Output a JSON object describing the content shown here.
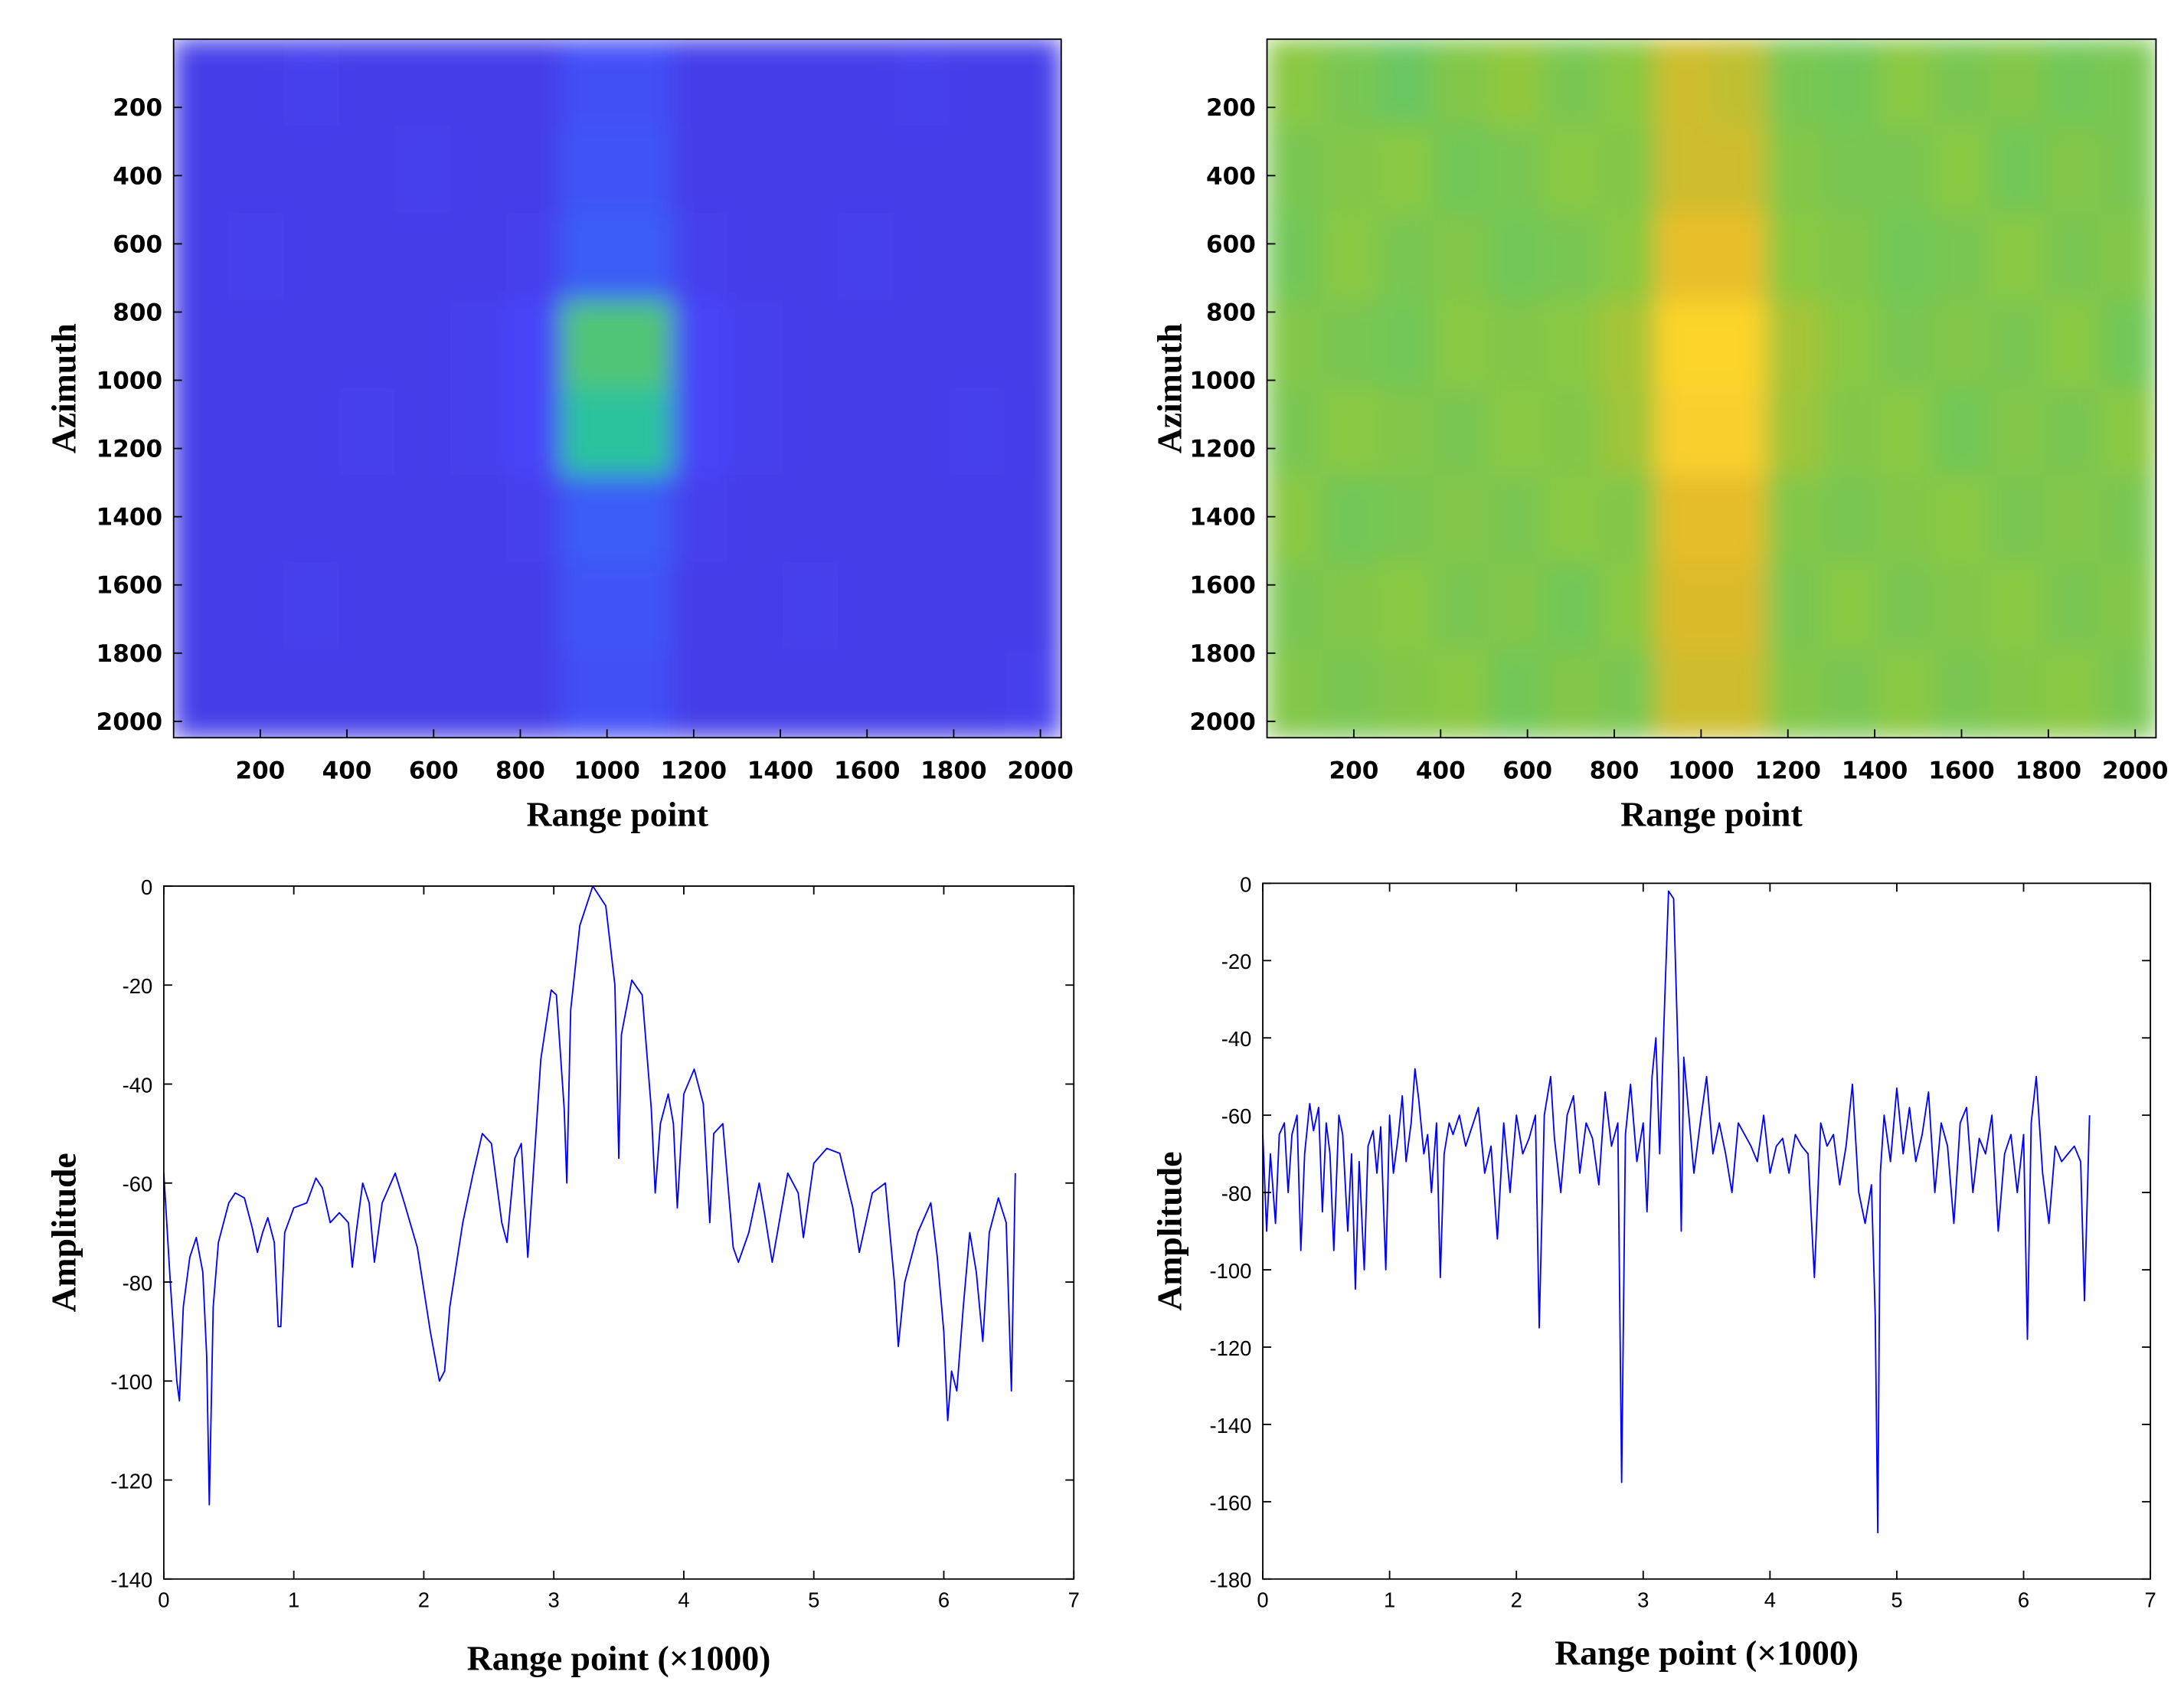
{
  "chart_data": [
    {
      "type": "heatmap",
      "xlabel": "Range point",
      "ylabel": "Azimuth",
      "xlim": [
        0,
        2048
      ],
      "ylim": [
        2048,
        0
      ],
      "xticks": [
        200,
        400,
        600,
        800,
        1000,
        1200,
        1400,
        1600,
        1800,
        2000
      ],
      "yticks": [
        200,
        400,
        600,
        800,
        1000,
        1200,
        1400,
        1600,
        1800,
        2000
      ],
      "clim": [
        0,
        1
      ],
      "colormap": [
        "#3e26a8",
        "#4743f8",
        "#2c7ef4",
        "#1ba9d7",
        "#29c39d",
        "#8ec83f",
        "#e2b92a",
        "#fcd22d",
        "#f9fb14"
      ],
      "z": [
        [
          0.1,
          0.1,
          0.11,
          0.1,
          0.1,
          0.1,
          0.1,
          0.15,
          0.15,
          0.1,
          0.1,
          0.1,
          0.1,
          0.11,
          0.1,
          0.1
        ],
        [
          0.1,
          0.1,
          0.1,
          0.1,
          0.11,
          0.1,
          0.1,
          0.16,
          0.16,
          0.1,
          0.1,
          0.1,
          0.1,
          0.1,
          0.1,
          0.1
        ],
        [
          0.1,
          0.11,
          0.1,
          0.1,
          0.1,
          0.1,
          0.11,
          0.18,
          0.18,
          0.11,
          0.1,
          0.1,
          0.11,
          0.1,
          0.1,
          0.1
        ],
        [
          0.1,
          0.1,
          0.1,
          0.1,
          0.1,
          0.11,
          0.13,
          0.55,
          0.55,
          0.13,
          0.11,
          0.1,
          0.1,
          0.1,
          0.1,
          0.1
        ],
        [
          0.1,
          0.1,
          0.1,
          0.11,
          0.1,
          0.11,
          0.13,
          0.5,
          0.5,
          0.13,
          0.11,
          0.1,
          0.1,
          0.1,
          0.11,
          0.1
        ],
        [
          0.1,
          0.1,
          0.1,
          0.1,
          0.1,
          0.1,
          0.11,
          0.18,
          0.18,
          0.11,
          0.1,
          0.1,
          0.1,
          0.1,
          0.1,
          0.1
        ],
        [
          0.1,
          0.1,
          0.11,
          0.1,
          0.1,
          0.1,
          0.1,
          0.16,
          0.16,
          0.1,
          0.1,
          0.11,
          0.1,
          0.1,
          0.1,
          0.1
        ],
        [
          0.1,
          0.1,
          0.1,
          0.1,
          0.1,
          0.1,
          0.1,
          0.15,
          0.15,
          0.1,
          0.1,
          0.1,
          0.1,
          0.1,
          0.1,
          0.11
        ]
      ]
    },
    {
      "type": "heatmap",
      "xlabel": "Range point",
      "ylabel": "Azimuth",
      "xlim": [
        0,
        2048
      ],
      "ylim": [
        2048,
        0
      ],
      "xticks": [
        200,
        400,
        600,
        800,
        1000,
        1200,
        1400,
        1600,
        1800,
        2000
      ],
      "yticks": [
        200,
        400,
        600,
        800,
        1000,
        1200,
        1400,
        1600,
        1800,
        2000
      ],
      "clim": [
        0,
        1
      ],
      "colormap": [
        "#3e26a8",
        "#4743f8",
        "#2c7ef4",
        "#1ba9d7",
        "#29c39d",
        "#8ec83f",
        "#e2b92a",
        "#fcd22d",
        "#f9fb14"
      ],
      "z": [
        [
          0.62,
          0.6,
          0.58,
          0.61,
          0.63,
          0.6,
          0.62,
          0.72,
          0.7,
          0.6,
          0.59,
          0.62,
          0.6,
          0.61,
          0.59,
          0.6
        ],
        [
          0.6,
          0.61,
          0.62,
          0.59,
          0.6,
          0.62,
          0.61,
          0.72,
          0.72,
          0.61,
          0.6,
          0.6,
          0.62,
          0.59,
          0.61,
          0.6
        ],
        [
          0.59,
          0.62,
          0.6,
          0.61,
          0.59,
          0.6,
          0.62,
          0.78,
          0.78,
          0.62,
          0.61,
          0.59,
          0.6,
          0.62,
          0.6,
          0.61
        ],
        [
          0.61,
          0.6,
          0.59,
          0.62,
          0.61,
          0.62,
          0.66,
          0.88,
          0.88,
          0.66,
          0.62,
          0.6,
          0.61,
          0.6,
          0.62,
          0.59
        ],
        [
          0.6,
          0.62,
          0.61,
          0.6,
          0.62,
          0.61,
          0.65,
          0.86,
          0.86,
          0.65,
          0.61,
          0.62,
          0.59,
          0.61,
          0.6,
          0.62
        ],
        [
          0.62,
          0.59,
          0.6,
          0.61,
          0.6,
          0.62,
          0.61,
          0.77,
          0.77,
          0.61,
          0.6,
          0.61,
          0.62,
          0.6,
          0.61,
          0.6
        ],
        [
          0.6,
          0.61,
          0.62,
          0.6,
          0.61,
          0.59,
          0.62,
          0.74,
          0.74,
          0.6,
          0.62,
          0.6,
          0.61,
          0.62,
          0.6,
          0.61
        ],
        [
          0.61,
          0.6,
          0.61,
          0.62,
          0.59,
          0.61,
          0.6,
          0.72,
          0.72,
          0.61,
          0.6,
          0.62,
          0.6,
          0.61,
          0.62,
          0.6
        ]
      ]
    },
    {
      "type": "line",
      "xlabel": "Range point (×1000)",
      "ylabel": "Amplitude",
      "color": "#0000ff",
      "xlim": [
        0,
        7
      ],
      "ylim": [
        -140,
        0
      ],
      "xticks": [
        0,
        1,
        2,
        3,
        4,
        5,
        6,
        7
      ],
      "yticks": [
        0,
        -20,
        -40,
        -60,
        -80,
        -100,
        -120,
        -140
      ],
      "x": [
        0,
        0.05,
        0.1,
        0.12,
        0.15,
        0.2,
        0.25,
        0.3,
        0.33,
        0.35,
        0.38,
        0.42,
        0.5,
        0.55,
        0.62,
        0.68,
        0.72,
        0.76,
        0.8,
        0.85,
        0.88,
        0.9,
        0.93,
        1.0,
        1.1,
        1.17,
        1.22,
        1.28,
        1.35,
        1.42,
        1.45,
        1.48,
        1.53,
        1.58,
        1.62,
        1.68,
        1.78,
        1.85,
        1.95,
        2.05,
        2.12,
        2.16,
        2.2,
        2.3,
        2.38,
        2.45,
        2.52,
        2.6,
        2.64,
        2.7,
        2.75,
        2.8,
        2.85,
        2.9,
        2.98,
        3.02,
        3.08,
        3.1,
        3.13,
        3.2,
        3.3,
        3.4,
        3.47,
        3.5,
        3.52,
        3.6,
        3.68,
        3.75,
        3.78,
        3.82,
        3.88,
        3.92,
        3.95,
        4.0,
        4.08,
        4.15,
        4.2,
        4.23,
        4.3,
        4.38,
        4.42,
        4.5,
        4.58,
        4.62,
        4.68,
        4.72,
        4.8,
        4.88,
        4.92,
        5.0,
        5.1,
        5.2,
        5.3,
        5.35,
        5.45,
        5.55,
        5.62,
        5.65,
        5.7,
        5.8,
        5.9,
        5.95,
        6.0,
        6.03,
        6.06,
        6.1,
        6.15,
        6.2,
        6.25,
        6.3,
        6.35,
        6.42,
        6.48,
        6.52,
        6.55
      ],
      "values": [
        -58,
        -80,
        -100,
        -104,
        -85,
        -75,
        -71,
        -78,
        -95,
        -125,
        -85,
        -72,
        -64,
        -62,
        -63,
        -69,
        -74,
        -70,
        -67,
        -72,
        -89,
        -89,
        -70,
        -65,
        -64,
        -59,
        -61,
        -68,
        -66,
        -68,
        -77,
        -70,
        -60,
        -64,
        -76,
        -64,
        -58,
        -64,
        -73,
        -90,
        -100,
        -98,
        -85,
        -68,
        -58,
        -50,
        -52,
        -68,
        -72,
        -55,
        -52,
        -75,
        -55,
        -35,
        -21,
        -22,
        -45,
        -60,
        -25,
        -8,
        0,
        -4,
        -20,
        -55,
        -30,
        -19,
        -22,
        -45,
        -62,
        -48,
        -42,
        -48,
        -65,
        -42,
        -37,
        -44,
        -68,
        -50,
        -48,
        -73,
        -76,
        -70,
        -60,
        -66,
        -76,
        -70,
        -58,
        -62,
        -71,
        -56,
        -53,
        -54,
        -65,
        -74,
        -62,
        -60,
        -80,
        -93,
        -80,
        -70,
        -64,
        -75,
        -90,
        -108,
        -98,
        -102,
        -85,
        -70,
        -78,
        -92,
        -70,
        -63,
        -68,
        -102,
        -58
      ]
    },
    {
      "type": "line",
      "xlabel": "Range point (×1000)",
      "ylabel": "Amplitude",
      "color": "#0000ff",
      "xlim": [
        0,
        7
      ],
      "ylim": [
        -180,
        0
      ],
      "xticks": [
        0,
        1,
        2,
        3,
        4,
        5,
        6,
        7
      ],
      "yticks": [
        0,
        -20,
        -40,
        -60,
        -80,
        -100,
        -120,
        -140,
        -160,
        -180
      ],
      "x": [
        0,
        0.03,
        0.06,
        0.1,
        0.13,
        0.17,
        0.2,
        0.23,
        0.27,
        0.3,
        0.33,
        0.37,
        0.4,
        0.44,
        0.47,
        0.5,
        0.53,
        0.56,
        0.6,
        0.63,
        0.67,
        0.7,
        0.73,
        0.76,
        0.8,
        0.83,
        0.87,
        0.9,
        0.93,
        0.97,
        1.0,
        1.03,
        1.07,
        1.1,
        1.13,
        1.17,
        1.2,
        1.23,
        1.27,
        1.3,
        1.33,
        1.37,
        1.4,
        1.43,
        1.47,
        1.5,
        1.55,
        1.6,
        1.65,
        1.7,
        1.75,
        1.8,
        1.85,
        1.9,
        1.95,
        2.0,
        2.05,
        2.1,
        2.15,
        2.18,
        2.22,
        2.27,
        2.3,
        2.35,
        2.4,
        2.45,
        2.5,
        2.55,
        2.6,
        2.65,
        2.7,
        2.75,
        2.8,
        2.83,
        2.86,
        2.9,
        2.95,
        3.0,
        3.03,
        3.07,
        3.1,
        3.13,
        3.17,
        3.2,
        3.24,
        3.28,
        3.3,
        3.32,
        3.36,
        3.4,
        3.45,
        3.5,
        3.55,
        3.6,
        3.65,
        3.7,
        3.75,
        3.8,
        3.85,
        3.9,
        3.95,
        4.0,
        4.05,
        4.1,
        4.15,
        4.2,
        4.25,
        4.3,
        4.35,
        4.4,
        4.45,
        4.5,
        4.55,
        4.6,
        4.65,
        4.7,
        4.75,
        4.8,
        4.83,
        4.85,
        4.87,
        4.9,
        4.95,
        5.0,
        5.05,
        5.1,
        5.15,
        5.2,
        5.25,
        5.3,
        5.35,
        5.4,
        5.45,
        5.5,
        5.55,
        5.6,
        5.65,
        5.7,
        5.75,
        5.8,
        5.85,
        5.9,
        5.95,
        6.0,
        6.03,
        6.06,
        6.1,
        6.15,
        6.2,
        6.25,
        6.3,
        6.35,
        6.4,
        6.45,
        6.48,
        6.52
      ],
      "values": [
        -65,
        -90,
        -70,
        -88,
        -65,
        -62,
        -80,
        -65,
        -60,
        -95,
        -70,
        -57,
        -64,
        -58,
        -85,
        -62,
        -70,
        -95,
        -60,
        -65,
        -90,
        -70,
        -105,
        -72,
        -100,
        -68,
        -64,
        -75,
        -63,
        -100,
        -60,
        -75,
        -65,
        -55,
        -72,
        -62,
        -48,
        -56,
        -70,
        -65,
        -80,
        -62,
        -102,
        -70,
        -62,
        -65,
        -60,
        -68,
        -63,
        -58,
        -75,
        -68,
        -92,
        -62,
        -80,
        -60,
        -70,
        -66,
        -60,
        -115,
        -60,
        -50,
        -66,
        -80,
        -60,
        -55,
        -75,
        -62,
        -66,
        -78,
        -54,
        -68,
        -62,
        -155,
        -65,
        -52,
        -72,
        -62,
        -85,
        -50,
        -40,
        -70,
        -30,
        -2,
        -4,
        -50,
        -90,
        -45,
        -60,
        -75,
        -62,
        -50,
        -70,
        -62,
        -70,
        -80,
        -62,
        -65,
        -68,
        -72,
        -60,
        -75,
        -68,
        -66,
        -75,
        -65,
        -68,
        -70,
        -102,
        -62,
        -68,
        -65,
        -78,
        -68,
        -52,
        -80,
        -88,
        -78,
        -112,
        -168,
        -75,
        -60,
        -72,
        -53,
        -70,
        -58,
        -72,
        -65,
        -54,
        -80,
        -62,
        -68,
        -88,
        -62,
        -58,
        -80,
        -66,
        -70,
        -60,
        -90,
        -70,
        -65,
        -80,
        -65,
        -118,
        -62,
        -50,
        -75,
        -88,
        -68,
        -72,
        -70,
        -68,
        -72,
        -108,
        -60
      ]
    }
  ]
}
